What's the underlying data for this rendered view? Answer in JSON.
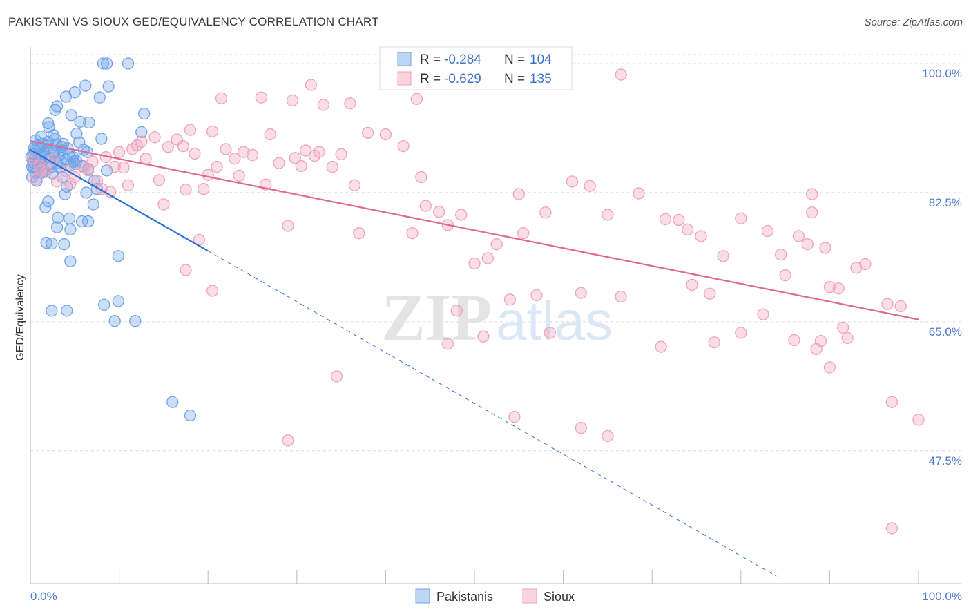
{
  "header": {
    "title": "PAKISTANI VS SIOUX GED/EQUIVALENCY CORRELATION CHART",
    "source": "Source: ZipAtlas.com"
  },
  "watermark": {
    "zip": "ZIP",
    "atlas": "atlas"
  },
  "chart_data": {
    "type": "scatter",
    "title": "PAKISTANI VS SIOUX GED/EQUIVALENCY CORRELATION CHART",
    "xlabel": "",
    "ylabel": "GED/Equivalency",
    "xlim": [
      0,
      100
    ],
    "ylim": [
      29.5,
      101.5
    ],
    "x_tick_labels": [
      "0.0%",
      "100.0%"
    ],
    "y_ticks": [
      100.0,
      82.5,
      65.0,
      47.5
    ],
    "y_tick_labels": [
      "100.0%",
      "82.5%",
      "65.0%",
      "47.5%"
    ],
    "legend": {
      "position": "top-center",
      "bottom_position": "bottom-center"
    },
    "series": [
      {
        "name": "Pakistanis",
        "color": "#6fa3e8",
        "line_color": "#2a6fd6",
        "r_label": "R =",
        "r_value": "-0.284",
        "n_label": "N =",
        "n_value": "104",
        "trend": {
          "x0": 0,
          "y0": 88.3,
          "x1": 20,
          "y1": 74.6,
          "dash_to_x": 84,
          "dash_to_y": 30.5
        },
        "points": [
          [
            0.3,
            87.8
          ],
          [
            0.5,
            88.2
          ],
          [
            0.8,
            86.9
          ],
          [
            1.1,
            88.6
          ],
          [
            1.4,
            87.5
          ],
          [
            1.8,
            88.9
          ],
          [
            2.2,
            87.2
          ],
          [
            2.6,
            88.1
          ],
          [
            3.0,
            86.5
          ],
          [
            3.5,
            88.7
          ],
          [
            4.0,
            87.0
          ],
          [
            0.4,
            85.9
          ],
          [
            0.9,
            86.3
          ],
          [
            1.6,
            85.4
          ],
          [
            2.4,
            86.0
          ],
          [
            3.2,
            87.6
          ],
          [
            4.5,
            86.2
          ],
          [
            5.2,
            86.8
          ],
          [
            6.0,
            88.3
          ],
          [
            6.5,
            85.7
          ],
          [
            0.2,
            84.6
          ],
          [
            0.7,
            84.1
          ],
          [
            1.3,
            85.2
          ],
          [
            2.0,
            89.4
          ],
          [
            2.8,
            89.8
          ],
          [
            3.7,
            89.1
          ],
          [
            5.5,
            89.3
          ],
          [
            0.6,
            89.6
          ],
          [
            1.2,
            90.1
          ],
          [
            1.9,
            88.4
          ],
          [
            0.1,
            87.3
          ],
          [
            0.3,
            86.6
          ],
          [
            8.2,
            100.0
          ],
          [
            8.6,
            100.0
          ],
          [
            11.0,
            100.0
          ],
          [
            4.0,
            95.5
          ],
          [
            6.2,
            97.0
          ],
          [
            8.8,
            96.9
          ],
          [
            5.0,
            96.1
          ],
          [
            7.8,
            95.4
          ],
          [
            3.0,
            94.2
          ],
          [
            2.8,
            93.7
          ],
          [
            4.6,
            93.0
          ],
          [
            12.8,
            93.2
          ],
          [
            2.0,
            91.9
          ],
          [
            5.6,
            92.1
          ],
          [
            6.6,
            92.0
          ],
          [
            2.1,
            91.4
          ],
          [
            2.6,
            90.3
          ],
          [
            5.2,
            90.5
          ],
          [
            12.5,
            90.7
          ],
          [
            8.0,
            89.8
          ],
          [
            6.4,
            88.0
          ],
          [
            4.3,
            87.7
          ],
          [
            4.9,
            86.7
          ],
          [
            2.5,
            85.1
          ],
          [
            3.6,
            84.6
          ],
          [
            4.1,
            83.3
          ],
          [
            7.2,
            84.1
          ],
          [
            8.6,
            85.5
          ],
          [
            3.9,
            82.3
          ],
          [
            6.3,
            82.5
          ],
          [
            1.7,
            80.5
          ],
          [
            2.0,
            81.3
          ],
          [
            7.1,
            80.9
          ],
          [
            3.1,
            79.1
          ],
          [
            4.4,
            79.0
          ],
          [
            5.8,
            78.6
          ],
          [
            6.5,
            78.6
          ],
          [
            3.0,
            77.8
          ],
          [
            4.5,
            77.5
          ],
          [
            1.8,
            75.7
          ],
          [
            2.4,
            75.6
          ],
          [
            3.8,
            75.5
          ],
          [
            9.9,
            73.9
          ],
          [
            4.5,
            73.2
          ],
          [
            8.3,
            67.3
          ],
          [
            9.9,
            67.8
          ],
          [
            2.4,
            66.5
          ],
          [
            4.1,
            66.5
          ],
          [
            9.5,
            65.1
          ],
          [
            11.8,
            65.1
          ],
          [
            16.0,
            54.1
          ],
          [
            18.0,
            52.3
          ],
          [
            1.0,
            87.0
          ],
          [
            1.5,
            87.9
          ],
          [
            2.3,
            86.3
          ],
          [
            3.3,
            85.9
          ],
          [
            4.2,
            88.5
          ],
          [
            5.9,
            86.1
          ],
          [
            0.8,
            88.9
          ],
          [
            1.1,
            86.1
          ],
          [
            2.9,
            89.0
          ],
          [
            3.4,
            86.8
          ],
          [
            0.4,
            88.5
          ],
          [
            0.6,
            85.2
          ],
          [
            1.7,
            87.4
          ],
          [
            2.7,
            87.9
          ],
          [
            5.1,
            86.4
          ],
          [
            7.5,
            83.0
          ],
          [
            0.2,
            86.0
          ],
          [
            1.4,
            89.1
          ],
          [
            3.6,
            88.2
          ],
          [
            4.8,
            87.3
          ]
        ]
      },
      {
        "name": "Sioux",
        "color": "#f2a0bb",
        "line_color": "#e0678f",
        "r_label": "R =",
        "r_value": "-0.629",
        "n_label": "N =",
        "n_value": "135",
        "trend": {
          "x0": 0,
          "y0": 89.5,
          "x1": 100,
          "y1": 65.3
        },
        "points": [
          [
            66.5,
            98.5
          ],
          [
            31.6,
            97.1
          ],
          [
            21.5,
            95.3
          ],
          [
            26.0,
            95.4
          ],
          [
            29.5,
            95.0
          ],
          [
            33.0,
            94.4
          ],
          [
            43.5,
            95.2
          ],
          [
            18.0,
            91.0
          ],
          [
            20.5,
            90.8
          ],
          [
            14.0,
            90.0
          ],
          [
            16.5,
            89.7
          ],
          [
            11.5,
            88.4
          ],
          [
            12.5,
            89.4
          ],
          [
            10.0,
            88.0
          ],
          [
            8.5,
            87.3
          ],
          [
            7.0,
            86.7
          ],
          [
            22.0,
            88.4
          ],
          [
            23.0,
            87.1
          ],
          [
            25.0,
            87.6
          ],
          [
            27.0,
            90.4
          ],
          [
            29.8,
            87.2
          ],
          [
            31.0,
            88.2
          ],
          [
            32.5,
            88.0
          ],
          [
            35.0,
            87.7
          ],
          [
            38.0,
            90.6
          ],
          [
            40.0,
            90.4
          ],
          [
            42.0,
            88.8
          ],
          [
            44.0,
            84.6
          ],
          [
            15.5,
            88.7
          ],
          [
            17.2,
            88.8
          ],
          [
            13.0,
            87.1
          ],
          [
            9.5,
            86.0
          ],
          [
            6.0,
            85.9
          ],
          [
            5.0,
            84.6
          ],
          [
            3.0,
            84.0
          ],
          [
            1.8,
            85.3
          ],
          [
            0.6,
            84.3
          ],
          [
            0.3,
            87.2
          ],
          [
            1.2,
            85.5
          ],
          [
            4.5,
            83.7
          ],
          [
            20.0,
            84.9
          ],
          [
            23.5,
            84.8
          ],
          [
            26.5,
            83.6
          ],
          [
            30.5,
            86.1
          ],
          [
            34.0,
            86.0
          ],
          [
            36.5,
            83.5
          ],
          [
            14.5,
            84.2
          ],
          [
            17.5,
            82.9
          ],
          [
            19.5,
            83.0
          ],
          [
            8.0,
            83.0
          ],
          [
            11.0,
            83.5
          ],
          [
            15.0,
            80.9
          ],
          [
            44.5,
            80.7
          ],
          [
            46.0,
            79.9
          ],
          [
            47.0,
            78.1
          ],
          [
            48.5,
            79.5
          ],
          [
            55.0,
            82.3
          ],
          [
            58.0,
            79.8
          ],
          [
            61.0,
            84.0
          ],
          [
            63.0,
            83.4
          ],
          [
            65.0,
            79.5
          ],
          [
            68.5,
            82.4
          ],
          [
            71.5,
            78.9
          ],
          [
            73.0,
            78.8
          ],
          [
            74.0,
            77.5
          ],
          [
            75.5,
            76.6
          ],
          [
            78.0,
            73.9
          ],
          [
            80.0,
            79.0
          ],
          [
            83.0,
            77.3
          ],
          [
            84.5,
            74.1
          ],
          [
            86.5,
            76.6
          ],
          [
            87.5,
            75.5
          ],
          [
            88.0,
            82.3
          ],
          [
            88.0,
            79.8
          ],
          [
            89.5,
            75.0
          ],
          [
            91.0,
            69.5
          ],
          [
            93.0,
            72.3
          ],
          [
            94.0,
            72.8
          ],
          [
            90.0,
            69.7
          ],
          [
            96.5,
            67.4
          ],
          [
            98.0,
            67.1
          ],
          [
            85.0,
            71.3
          ],
          [
            82.5,
            66.0
          ],
          [
            80.0,
            63.5
          ],
          [
            77.0,
            62.2
          ],
          [
            71.0,
            61.6
          ],
          [
            66.5,
            68.4
          ],
          [
            62.0,
            68.9
          ],
          [
            57.0,
            68.6
          ],
          [
            54.0,
            68.0
          ],
          [
            51.0,
            63.0
          ],
          [
            48.0,
            66.5
          ],
          [
            47.0,
            62.0
          ],
          [
            58.5,
            63.5
          ],
          [
            74.5,
            70.0
          ],
          [
            76.5,
            68.8
          ],
          [
            86.0,
            62.5
          ],
          [
            88.5,
            61.3
          ],
          [
            89.0,
            62.4
          ],
          [
            91.5,
            64.2
          ],
          [
            92.0,
            62.8
          ],
          [
            90.0,
            58.8
          ],
          [
            97.0,
            54.1
          ],
          [
            100.0,
            51.7
          ],
          [
            54.5,
            52.1
          ],
          [
            62.0,
            50.6
          ],
          [
            65.0,
            49.5
          ],
          [
            34.5,
            57.6
          ],
          [
            29.0,
            48.9
          ],
          [
            17.5,
            72.0
          ],
          [
            20.5,
            69.2
          ],
          [
            19.0,
            76.1
          ],
          [
            29.0,
            78.0
          ],
          [
            37.0,
            77.0
          ],
          [
            43.0,
            77.0
          ],
          [
            50.0,
            72.9
          ],
          [
            51.5,
            73.6
          ],
          [
            52.5,
            75.5
          ],
          [
            55.5,
            77.0
          ],
          [
            97.0,
            37.0
          ],
          [
            36.0,
            94.6
          ],
          [
            32.0,
            87.5
          ],
          [
            28.0,
            86.5
          ],
          [
            24.0,
            88.0
          ],
          [
            21.0,
            86.0
          ],
          [
            18.5,
            87.8
          ],
          [
            10.5,
            85.9
          ],
          [
            12.0,
            88.9
          ],
          [
            9.0,
            82.6
          ],
          [
            7.5,
            84.1
          ],
          [
            6.5,
            85.5
          ],
          [
            4.0,
            85.4
          ],
          [
            2.5,
            87.0
          ],
          [
            1.0,
            86.2
          ]
        ]
      }
    ]
  }
}
